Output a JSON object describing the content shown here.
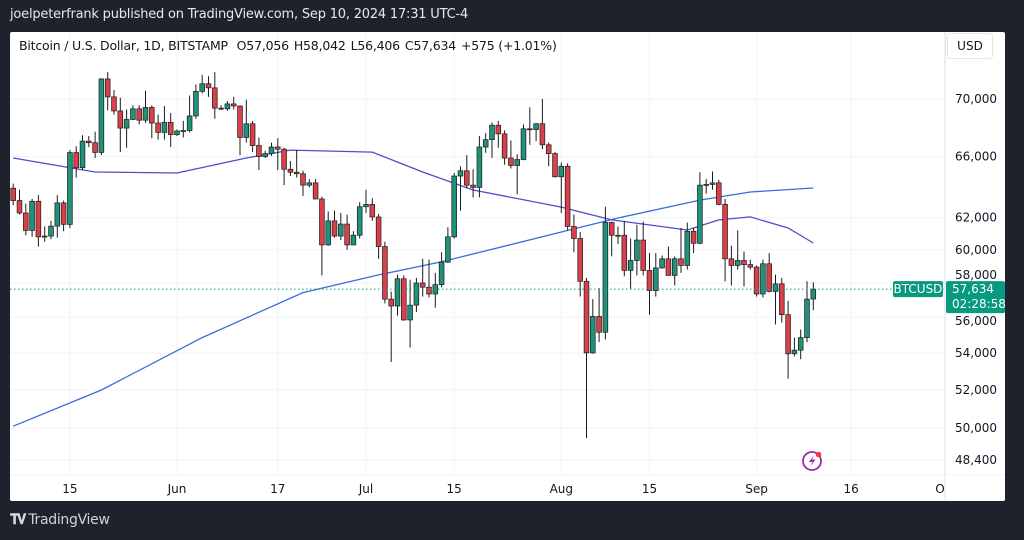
{
  "header": {
    "published": "joelpeterfrank published on TradingView.com, Sep 10, 2024 17:31 UTC-4"
  },
  "legend": {
    "symbol": "Bitcoin / U.S. Dollar, 1D, BITSTAMP",
    "open": "O57,056",
    "high": "H58,042",
    "low": "L56,406",
    "close": "C57,634",
    "change": "+575 (+1.01%)"
  },
  "currency": "USD",
  "last_price": {
    "symbol_label": "BTCUSD",
    "price": "57,634",
    "countdown": "02:28:58",
    "value": 57634,
    "color": "#089981"
  },
  "footer": {
    "brand": "TradingView",
    "logo": "TV"
  },
  "alert_icon": "lightning-icon",
  "chart_data": {
    "type": "candlestick",
    "title": "Bitcoin / U.S. Dollar, 1D, BITSTAMP",
    "y_scale": "log",
    "ylim": [
      48400,
      72500
    ],
    "grid": true,
    "colors": {
      "up": "#22917a",
      "down": "#d9404a",
      "ma_fast": "#4b4fc9",
      "ma_slow": "#3a6bdf"
    },
    "y_ticks": [
      {
        "value": 70000,
        "label": "70,000"
      },
      {
        "value": 66000,
        "label": "66,000"
      },
      {
        "value": 62000,
        "label": "62,000"
      },
      {
        "value": 60000,
        "label": "60,000"
      },
      {
        "value": 58000,
        "label": "58,000"
      },
      {
        "value": 56000,
        "label": "56,000"
      },
      {
        "value": 54000,
        "label": "54,000"
      },
      {
        "value": 52000,
        "label": "52,000"
      },
      {
        "value": 50000,
        "label": "50,000"
      },
      {
        "value": 48400,
        "label": "48,400"
      }
    ],
    "x_ticks": [
      {
        "date": "2024-05-15",
        "label": "15"
      },
      {
        "date": "2024-06-01",
        "label": "Jun"
      },
      {
        "date": "2024-06-17",
        "label": "17"
      },
      {
        "date": "2024-07-01",
        "label": "Jul"
      },
      {
        "date": "2024-07-15",
        "label": "15"
      },
      {
        "date": "2024-08-01",
        "label": "Aug"
      },
      {
        "date": "2024-08-15",
        "label": "15"
      },
      {
        "date": "2024-09-01",
        "label": "Sep"
      },
      {
        "date": "2024-09-16",
        "label": "16"
      },
      {
        "date": "2024-10-01",
        "label": "Oct"
      }
    ],
    "candles_columns": [
      "date",
      "open",
      "high",
      "low",
      "close"
    ],
    "candles": [
      [
        "2024-05-06",
        63900,
        64200,
        62800,
        63100
      ],
      [
        "2024-05-07",
        63100,
        63800,
        62200,
        62300
      ],
      [
        "2024-05-08",
        62300,
        62900,
        60900,
        61200
      ],
      [
        "2024-05-09",
        61200,
        63200,
        60800,
        63050
      ],
      [
        "2024-05-10",
        63050,
        63450,
        60200,
        60800
      ],
      [
        "2024-05-11",
        60800,
        61450,
        60500,
        60850
      ],
      [
        "2024-05-12",
        60850,
        61800,
        60650,
        61470
      ],
      [
        "2024-05-13",
        61470,
        63450,
        60750,
        62950
      ],
      [
        "2024-05-14",
        62950,
        63100,
        61150,
        61580
      ],
      [
        "2024-05-15",
        61580,
        66450,
        61350,
        66270
      ],
      [
        "2024-05-16",
        66270,
        66700,
        64600,
        65250
      ],
      [
        "2024-05-17",
        65250,
        67450,
        65100,
        67050
      ],
      [
        "2024-05-18",
        67050,
        67400,
        66650,
        66940
      ],
      [
        "2024-05-19",
        66940,
        67700,
        65900,
        66280
      ],
      [
        "2024-05-20",
        66280,
        71500,
        66100,
        71450
      ],
      [
        "2024-05-21",
        71450,
        71950,
        69200,
        70150
      ],
      [
        "2024-05-22",
        70150,
        70650,
        68900,
        69150
      ],
      [
        "2024-05-23",
        69150,
        70100,
        66300,
        67950
      ],
      [
        "2024-05-24",
        67950,
        69250,
        66600,
        68550
      ],
      [
        "2024-05-25",
        68550,
        69550,
        68500,
        69300
      ],
      [
        "2024-05-26",
        69300,
        69550,
        68200,
        68500
      ],
      [
        "2024-05-27",
        68500,
        70600,
        68300,
        69400
      ],
      [
        "2024-05-28",
        69400,
        69550,
        67250,
        68300
      ],
      [
        "2024-05-29",
        68300,
        68900,
        67150,
        67650
      ],
      [
        "2024-05-30",
        67650,
        69500,
        67150,
        68350
      ],
      [
        "2024-05-31",
        68350,
        69000,
        66650,
        67500
      ],
      [
        "2024-06-01",
        67500,
        67850,
        67400,
        67750
      ],
      [
        "2024-06-02",
        67750,
        68450,
        67300,
        67780
      ],
      [
        "2024-06-03",
        67780,
        70250,
        67650,
        68800
      ],
      [
        "2024-06-04",
        68800,
        71050,
        68600,
        70550
      ],
      [
        "2024-06-05",
        70550,
        71750,
        70400,
        71100
      ],
      [
        "2024-06-06",
        71100,
        71650,
        70150,
        70800
      ],
      [
        "2024-06-07",
        70800,
        71950,
        68600,
        69350
      ],
      [
        "2024-06-08",
        69350,
        69550,
        69200,
        69300
      ],
      [
        "2024-06-09",
        69300,
        69850,
        69150,
        69650
      ],
      [
        "2024-06-10",
        69650,
        70150,
        69250,
        69500
      ],
      [
        "2024-06-11",
        69500,
        69550,
        66100,
        67300
      ],
      [
        "2024-06-12",
        67300,
        69950,
        66950,
        68250
      ],
      [
        "2024-06-13",
        68250,
        68450,
        66300,
        66750
      ],
      [
        "2024-06-14",
        66750,
        67300,
        65100,
        66000
      ],
      [
        "2024-06-15",
        66000,
        66400,
        65900,
        66200
      ],
      [
        "2024-06-16",
        66200,
        66950,
        66050,
        66650
      ],
      [
        "2024-06-17",
        66650,
        67250,
        65100,
        66500
      ],
      [
        "2024-06-18",
        66500,
        66600,
        64100,
        65150
      ],
      [
        "2024-06-19",
        65150,
        65700,
        64700,
        64950
      ],
      [
        "2024-06-20",
        64950,
        66450,
        64600,
        64850
      ],
      [
        "2024-06-21",
        64850,
        65050,
        63400,
        64100
      ],
      [
        "2024-06-22",
        64100,
        64500,
        63950,
        64250
      ],
      [
        "2024-06-23",
        64250,
        64500,
        63300,
        63200
      ],
      [
        "2024-06-24",
        63200,
        63350,
        58450,
        60300
      ],
      [
        "2024-06-25",
        60300,
        62400,
        60250,
        61800
      ],
      [
        "2024-06-26",
        61800,
        62450,
        60750,
        60850
      ],
      [
        "2024-06-27",
        60850,
        62300,
        60600,
        61600
      ],
      [
        "2024-06-28",
        61600,
        62200,
        60000,
        60300
      ],
      [
        "2024-06-29",
        60300,
        61150,
        60300,
        60900
      ],
      [
        "2024-06-30",
        60900,
        63000,
        60700,
        62700
      ],
      [
        "2024-07-01",
        62700,
        63800,
        62300,
        62850
      ],
      [
        "2024-07-02",
        62850,
        63250,
        61800,
        62050
      ],
      [
        "2024-07-03",
        62050,
        62250,
        59450,
        60200
      ],
      [
        "2024-07-04",
        60200,
        60500,
        56800,
        57050
      ],
      [
        "2024-07-05",
        57050,
        57500,
        53500,
        56650
      ],
      [
        "2024-07-06",
        56650,
        58500,
        56100,
        58250
      ],
      [
        "2024-07-07",
        58250,
        58450,
        55800,
        55850
      ],
      [
        "2024-07-08",
        55850,
        58200,
        54300,
        56700
      ],
      [
        "2024-07-09",
        56700,
        58300,
        56300,
        58000
      ],
      [
        "2024-07-10",
        58000,
        59450,
        57200,
        57750
      ],
      [
        "2024-07-11",
        57750,
        59400,
        57150,
        57350
      ],
      [
        "2024-07-12",
        57350,
        58600,
        56550,
        57900
      ],
      [
        "2024-07-13",
        57900,
        59850,
        57750,
        59250
      ],
      [
        "2024-07-14",
        59250,
        61400,
        59200,
        60800
      ],
      [
        "2024-07-15",
        60800,
        64900,
        60700,
        64700
      ],
      [
        "2024-07-16",
        64700,
        65350,
        62450,
        65050
      ],
      [
        "2024-07-17",
        65050,
        66100,
        63900,
        64100
      ],
      [
        "2024-07-18",
        64100,
        65150,
        63300,
        63950
      ],
      [
        "2024-07-19",
        63950,
        67400,
        63300,
        66650
      ],
      [
        "2024-07-20",
        66650,
        67600,
        66250,
        67150
      ],
      [
        "2024-07-21",
        67150,
        68350,
        65900,
        68150
      ],
      [
        "2024-07-22",
        68150,
        68450,
        66600,
        67550
      ],
      [
        "2024-07-23",
        67550,
        67800,
        65450,
        65900
      ],
      [
        "2024-07-24",
        65900,
        67100,
        65200,
        65400
      ],
      [
        "2024-07-25",
        65400,
        66150,
        63500,
        65800
      ],
      [
        "2024-07-26",
        65800,
        68200,
        65750,
        67900
      ],
      [
        "2024-07-27",
        67900,
        69400,
        66800,
        67850
      ],
      [
        "2024-07-28",
        67850,
        68300,
        67050,
        68250
      ],
      [
        "2024-07-29",
        68250,
        70000,
        66500,
        66800
      ],
      [
        "2024-07-30",
        66800,
        66950,
        65350,
        66200
      ],
      [
        "2024-07-31",
        66200,
        66300,
        64600,
        64650
      ],
      [
        "2024-08-01",
        64650,
        65600,
        62300,
        65350
      ],
      [
        "2024-08-02",
        65350,
        65550,
        61200,
        61450
      ],
      [
        "2024-08-03",
        61450,
        62200,
        59850,
        60700
      ],
      [
        "2024-08-04",
        60700,
        61100,
        57200,
        58100
      ],
      [
        "2024-08-05",
        58100,
        58300,
        49500,
        54000
      ],
      [
        "2024-08-06",
        54000,
        57050,
        53950,
        56050
      ],
      [
        "2024-08-07",
        56050,
        57700,
        54600,
        55150
      ],
      [
        "2024-08-08",
        55150,
        62700,
        54750,
        61700
      ],
      [
        "2024-08-09",
        61700,
        61750,
        59600,
        60900
      ],
      [
        "2024-08-10",
        60900,
        61450,
        60350,
        60900
      ],
      [
        "2024-08-11",
        60900,
        61800,
        58400,
        58750
      ],
      [
        "2024-08-12",
        58750,
        60700,
        57650,
        59350
      ],
      [
        "2024-08-13",
        59350,
        61550,
        58450,
        60600
      ],
      [
        "2024-08-14",
        60600,
        61750,
        58450,
        58750
      ],
      [
        "2024-08-15",
        58750,
        59800,
        56150,
        57550
      ],
      [
        "2024-08-16",
        57550,
        59800,
        57200,
        58900
      ],
      [
        "2024-08-17",
        58900,
        59650,
        58850,
        59450
      ],
      [
        "2024-08-18",
        59450,
        60200,
        58450,
        58450
      ],
      [
        "2024-08-19",
        58450,
        59600,
        57850,
        59450
      ],
      [
        "2024-08-20",
        59450,
        61350,
        58600,
        59050
      ],
      [
        "2024-08-21",
        59050,
        61700,
        58800,
        61150
      ],
      [
        "2024-08-22",
        61150,
        61350,
        59800,
        60400
      ],
      [
        "2024-08-23",
        60400,
        64950,
        60350,
        64100
      ],
      [
        "2024-08-24",
        64100,
        64500,
        63550,
        64150
      ],
      [
        "2024-08-25",
        64150,
        65000,
        63800,
        64250
      ],
      [
        "2024-08-26",
        64250,
        64450,
        62800,
        62850
      ],
      [
        "2024-08-27",
        62850,
        63200,
        58100,
        59450
      ],
      [
        "2024-08-28",
        59450,
        60250,
        57850,
        59050
      ],
      [
        "2024-08-29",
        59050,
        61200,
        58800,
        59350
      ],
      [
        "2024-08-30",
        59350,
        59900,
        57800,
        59100
      ],
      [
        "2024-08-31",
        59100,
        59400,
        58800,
        58950
      ],
      [
        "2024-09-01",
        58950,
        59050,
        57200,
        57350
      ],
      [
        "2024-09-02",
        57350,
        59400,
        57150,
        59150
      ],
      [
        "2024-09-03",
        59150,
        59800,
        57450,
        57500
      ],
      [
        "2024-09-04",
        57500,
        58500,
        55600,
        57950
      ],
      [
        "2024-09-05",
        57950,
        58300,
        55700,
        56150
      ],
      [
        "2024-09-06",
        56150,
        56950,
        52600,
        53950
      ],
      [
        "2024-09-07",
        53950,
        54850,
        53800,
        54150
      ],
      [
        "2024-09-08",
        54150,
        55300,
        53650,
        54850
      ],
      [
        "2024-09-09",
        54850,
        58100,
        54600,
        57050
      ],
      [
        "2024-09-10",
        57056,
        58042,
        56406,
        57634
      ]
    ],
    "moving_averages": [
      {
        "role": "fast",
        "points": [
          [
            "2024-05-06",
            65900
          ],
          [
            "2024-05-19",
            64970
          ],
          [
            "2024-06-01",
            64900
          ],
          [
            "2024-06-12",
            65900
          ],
          [
            "2024-06-19",
            66440
          ],
          [
            "2024-07-02",
            66300
          ],
          [
            "2024-07-10",
            64970
          ],
          [
            "2024-07-18",
            63780
          ],
          [
            "2024-08-01",
            62680
          ],
          [
            "2024-08-09",
            61860
          ],
          [
            "2024-08-21",
            61230
          ],
          [
            "2024-08-26",
            61860
          ],
          [
            "2024-08-31",
            62050
          ],
          [
            "2024-09-06",
            61350
          ],
          [
            "2024-09-10",
            60420
          ]
        ]
      },
      {
        "role": "slow",
        "points": [
          [
            "2024-05-06",
            50100
          ],
          [
            "2024-05-20",
            51990
          ],
          [
            "2024-06-05",
            54850
          ],
          [
            "2024-06-21",
            57430
          ],
          [
            "2024-07-03",
            58480
          ],
          [
            "2024-07-13",
            59270
          ],
          [
            "2024-08-01",
            61100
          ],
          [
            "2024-08-10",
            61980
          ],
          [
            "2024-08-23",
            63130
          ],
          [
            "2024-08-31",
            63650
          ],
          [
            "2024-09-10",
            63910
          ]
        ]
      }
    ]
  }
}
